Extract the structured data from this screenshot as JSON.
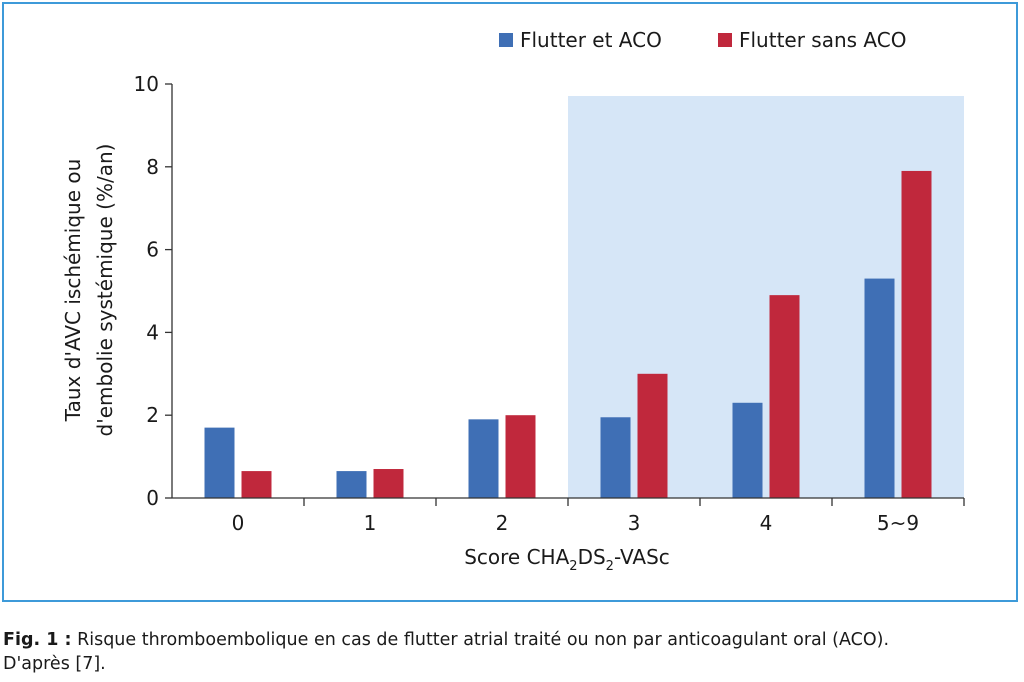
{
  "chart_data": {
    "type": "bar",
    "title": "",
    "categories": [
      "0",
      "1",
      "2",
      "3",
      "4",
      "5~9"
    ],
    "series": [
      {
        "name": "Flutter et ACO",
        "color": "#3f6fb5",
        "values": [
          1.7,
          0.65,
          1.9,
          1.95,
          2.3,
          5.3
        ]
      },
      {
        "name": "Flutter sans ACO",
        "color": "#c0283c",
        "values": [
          0.65,
          0.7,
          2.0,
          3.0,
          4.9,
          7.9
        ]
      }
    ],
    "ylim": [
      0,
      10
    ],
    "yticks": [
      "0",
      "2",
      "4",
      "6",
      "8",
      "10"
    ],
    "ylabel_line1": "Taux d'AVC ischémique ou",
    "ylabel_line2": "d'embolie systémique (%/an)",
    "xlabel_main": "Score CHA",
    "xlabel_sub1": "2",
    "xlabel_mid": "DS",
    "xlabel_sub2": "2",
    "xlabel_end": "-VASc",
    "highlight_region": {
      "from_category": "3",
      "to_category": "5~9",
      "color": "#d6e6f7"
    },
    "legend_position": "top-right",
    "grid": false
  },
  "caption": {
    "label": "Fig. 1 :",
    "text": " Risque thromboembolique en cas de flutter atrial traité ou non par anticoagulant oral (ACO).",
    "text2": "D'après [7]."
  }
}
